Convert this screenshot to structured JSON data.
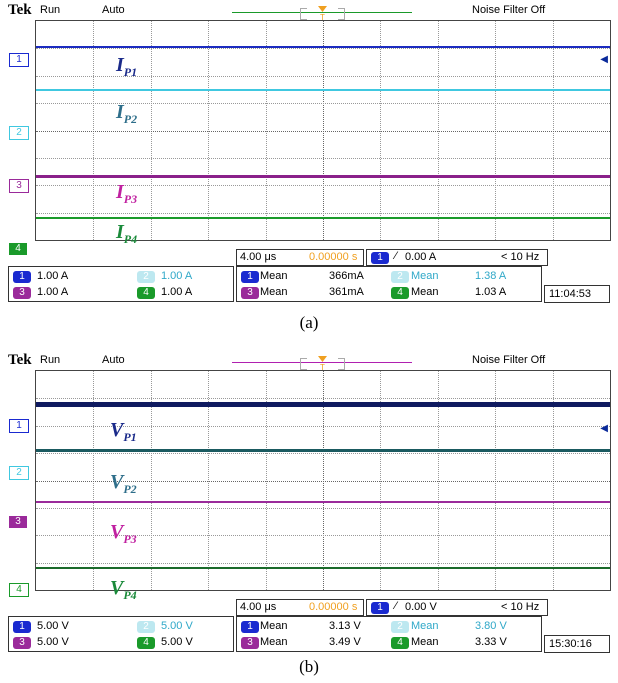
{
  "scopes": [
    {
      "header": {
        "brand": "Tek",
        "status": "Run",
        "mode": "Auto",
        "noise_filter": "Noise Filter Off"
      },
      "trigger_line_color": "#1a9a2a",
      "trace_labels": [
        {
          "letter": "I",
          "sub": "P1",
          "color": "#1a2a8a"
        },
        {
          "letter": "I",
          "sub": "P2",
          "color": "#2e6e8a"
        },
        {
          "letter": "I",
          "sub": "P3",
          "color": "#c020a0"
        },
        {
          "letter": "I",
          "sub": "P4",
          "color": "#1a8a3a"
        }
      ],
      "channels": [
        {
          "num": "1",
          "scale": "1.00 A",
          "color": "#1a2ad0"
        },
        {
          "num": "2",
          "scale": "1.00 A",
          "color": "#40c8e0"
        },
        {
          "num": "3",
          "scale": "1.00 A",
          "color": "#9a2a9a"
        },
        {
          "num": "4",
          "scale": "1.00 A",
          "color": "#1a9a2a"
        }
      ],
      "timebase": "4.00 μs",
      "trigger_pos": "0.00000 s",
      "trigger_level": "0.00 A",
      "freq": "< 10 Hz",
      "measurements": [
        {
          "ch": "1",
          "label": "Mean",
          "value": "366mA"
        },
        {
          "ch": "2",
          "label": "Mean",
          "value": "1.38 A"
        },
        {
          "ch": "3",
          "label": "Mean",
          "value": "361mA"
        },
        {
          "ch": "4",
          "label": "Mean",
          "value": "1.03 A"
        }
      ],
      "time": "11:04:53",
      "caption": "(a)"
    },
    {
      "header": {
        "brand": "Tek",
        "status": "Run",
        "mode": "Auto",
        "noise_filter": "Noise Filter Off"
      },
      "trigger_line_color": "#b020b0",
      "trace_labels": [
        {
          "letter": "V",
          "sub": "P1",
          "color": "#1a2a8a"
        },
        {
          "letter": "V",
          "sub": "P2",
          "color": "#2e6e8a"
        },
        {
          "letter": "V",
          "sub": "P3",
          "color": "#c020a0"
        },
        {
          "letter": "V",
          "sub": "P4",
          "color": "#1a8a3a"
        }
      ],
      "channels": [
        {
          "num": "1",
          "scale": "5.00 V",
          "color": "#1a2ad0"
        },
        {
          "num": "2",
          "scale": "5.00 V",
          "color": "#40c8e0"
        },
        {
          "num": "3",
          "scale": "5.00 V",
          "color": "#9a2a9a"
        },
        {
          "num": "4",
          "scale": "5.00 V",
          "color": "#1a9a2a"
        }
      ],
      "timebase": "4.00 μs",
      "trigger_pos": "0.00000 s",
      "trigger_level": "0.00 V",
      "freq": "< 10 Hz",
      "measurements": [
        {
          "ch": "1",
          "label": "Mean",
          "value": "3.13 V"
        },
        {
          "ch": "2",
          "label": "Mean",
          "value": "3.80 V"
        },
        {
          "ch": "3",
          "label": "Mean",
          "value": "3.49 V"
        },
        {
          "ch": "4",
          "label": "Mean",
          "value": "3.33 V"
        }
      ],
      "time": "15:30:16",
      "caption": "(b)"
    }
  ]
}
